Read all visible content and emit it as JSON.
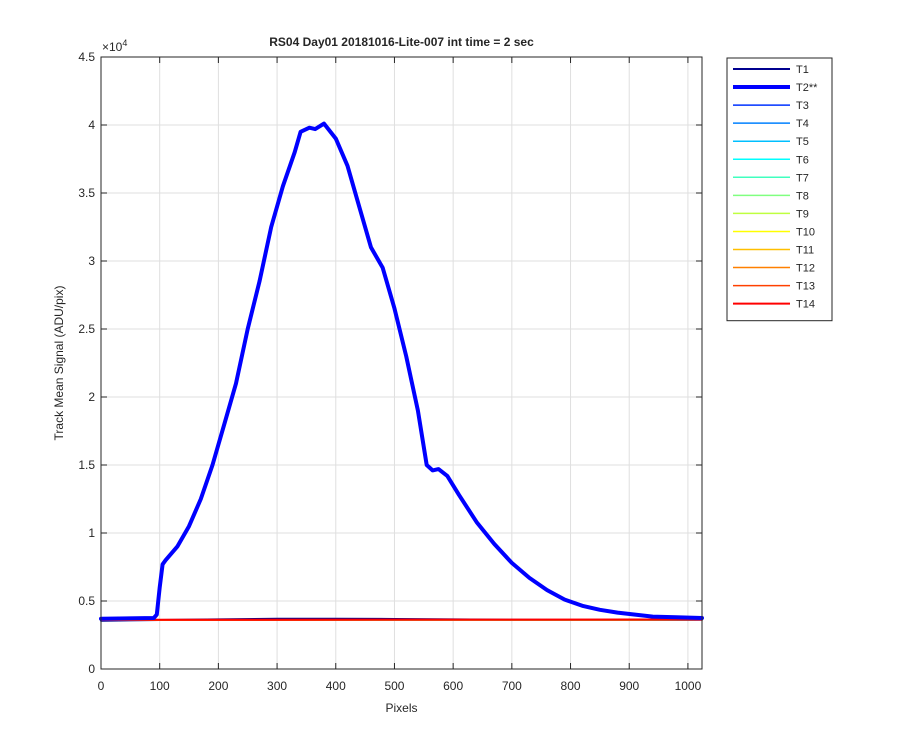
{
  "chart_data": {
    "type": "line",
    "title": "RS04 Day01 20181016-Lite-007 int time = 2 sec",
    "xlabel": "Pixels",
    "ylabel": "Track Mean Signal (ADU/pix)",
    "y_exponent_label": "×10",
    "y_exponent_power": "4",
    "xlim": [
      0,
      1024
    ],
    "ylim": [
      0,
      45000
    ],
    "xticks": [
      0,
      100,
      200,
      300,
      400,
      500,
      600,
      700,
      800,
      900,
      1000
    ],
    "yticks": [
      0,
      5000,
      10000,
      15000,
      20000,
      25000,
      30000,
      35000,
      40000,
      45000
    ],
    "ytick_labels": [
      "0",
      "0.5",
      "1",
      "1.5",
      "2",
      "2.5",
      "3",
      "3.5",
      "4",
      "4.5"
    ],
    "grid": true,
    "legend_position": "outside-top-right",
    "series": [
      {
        "name": "T1",
        "color": "#00008f",
        "width": 2,
        "x": [
          0,
          100,
          200,
          300,
          400,
          500,
          600,
          700,
          800,
          900,
          1024
        ],
        "y": [
          3550,
          3600,
          3650,
          3700,
          3700,
          3680,
          3650,
          3620,
          3600,
          3600,
          3620
        ]
      },
      {
        "name": "T2**",
        "color": "#0000ff",
        "width": 4,
        "x": [
          0,
          90,
          95,
          100,
          105,
          110,
          130,
          150,
          170,
          190,
          210,
          230,
          250,
          270,
          290,
          310,
          330,
          340,
          355,
          365,
          380,
          400,
          420,
          440,
          460,
          480,
          500,
          520,
          540,
          555,
          565,
          575,
          590,
          610,
          640,
          670,
          700,
          730,
          760,
          790,
          820,
          850,
          880,
          910,
          940,
          980,
          1024
        ],
        "y": [
          3700,
          3750,
          4000,
          6000,
          7700,
          8000,
          9000,
          10500,
          12500,
          15000,
          18000,
          21000,
          25000,
          28500,
          32500,
          35500,
          38000,
          39500,
          39800,
          39700,
          40100,
          39000,
          37000,
          34000,
          31000,
          29500,
          26500,
          23000,
          19000,
          15000,
          14600,
          14700,
          14200,
          12800,
          10800,
          9200,
          7800,
          6700,
          5800,
          5100,
          4650,
          4350,
          4150,
          4000,
          3850,
          3800,
          3750
        ]
      },
      {
        "name": "T3",
        "color": "#0033ff",
        "width": 1.5,
        "x": [
          0,
          1024
        ],
        "y": [
          3600,
          3620
        ]
      },
      {
        "name": "T4",
        "color": "#0080ff",
        "width": 1.5,
        "x": [
          0,
          1024
        ],
        "y": [
          3600,
          3620
        ]
      },
      {
        "name": "T5",
        "color": "#00bfff",
        "width": 1.5,
        "x": [
          0,
          1024
        ],
        "y": [
          3600,
          3620
        ]
      },
      {
        "name": "T6",
        "color": "#00ffff",
        "width": 1.5,
        "x": [
          0,
          1024
        ],
        "y": [
          3600,
          3620
        ]
      },
      {
        "name": "T7",
        "color": "#40ffbf",
        "width": 1.5,
        "x": [
          0,
          1024
        ],
        "y": [
          3600,
          3620
        ]
      },
      {
        "name": "T8",
        "color": "#80ff80",
        "width": 1.5,
        "x": [
          0,
          1024
        ],
        "y": [
          3600,
          3620
        ]
      },
      {
        "name": "T9",
        "color": "#bfff40",
        "width": 1.5,
        "x": [
          0,
          1024
        ],
        "y": [
          3600,
          3620
        ]
      },
      {
        "name": "T10",
        "color": "#ffff00",
        "width": 1.5,
        "x": [
          0,
          1024
        ],
        "y": [
          3600,
          3620
        ]
      },
      {
        "name": "T11",
        "color": "#ffbf00",
        "width": 1.5,
        "x": [
          0,
          1024
        ],
        "y": [
          3600,
          3620
        ]
      },
      {
        "name": "T12",
        "color": "#ff8000",
        "width": 1.5,
        "x": [
          0,
          1024
        ],
        "y": [
          3600,
          3620
        ]
      },
      {
        "name": "T13",
        "color": "#ff4000",
        "width": 1.5,
        "x": [
          0,
          1024
        ],
        "y": [
          3600,
          3620
        ]
      },
      {
        "name": "T14",
        "color": "#ff0000",
        "width": 2,
        "x": [
          0,
          1024
        ],
        "y": [
          3620,
          3640
        ]
      }
    ]
  }
}
